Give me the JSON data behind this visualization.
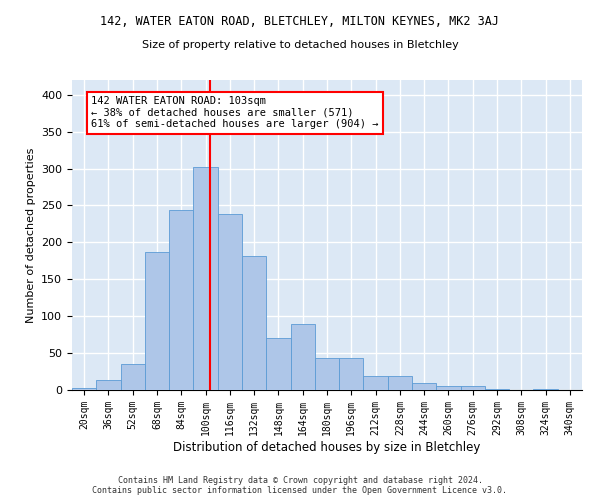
{
  "title1": "142, WATER EATON ROAD, BLETCHLEY, MILTON KEYNES, MK2 3AJ",
  "title2": "Size of property relative to detached houses in Bletchley",
  "xlabel": "Distribution of detached houses by size in Bletchley",
  "ylabel": "Number of detached properties",
  "categories": [
    "20sqm",
    "36sqm",
    "52sqm",
    "68sqm",
    "84sqm",
    "100sqm",
    "116sqm",
    "132sqm",
    "148sqm",
    "164sqm",
    "180sqm",
    "196sqm",
    "212sqm",
    "228sqm",
    "244sqm",
    "260sqm",
    "276sqm",
    "292sqm",
    "308sqm",
    "324sqm",
    "340sqm"
  ],
  "values": [
    3,
    13,
    35,
    187,
    244,
    302,
    239,
    181,
    71,
    90,
    44,
    44,
    19,
    19,
    10,
    5,
    5,
    2,
    0,
    1,
    0
  ],
  "bar_color": "#aec6e8",
  "bar_edge_color": "#5b9bd5",
  "bg_color": "#dce8f5",
  "grid_color": "#ffffff",
  "vline_x": 5.19,
  "vline_color": "red",
  "annotation_text": "142 WATER EATON ROAD: 103sqm\n← 38% of detached houses are smaller (571)\n61% of semi-detached houses are larger (904) →",
  "annotation_box_color": "white",
  "annotation_box_edge": "red",
  "ylim": [
    0,
    420
  ],
  "yticks": [
    0,
    50,
    100,
    150,
    200,
    250,
    300,
    350,
    400
  ],
  "footer1": "Contains HM Land Registry data © Crown copyright and database right 2024.",
  "footer2": "Contains public sector information licensed under the Open Government Licence v3.0."
}
